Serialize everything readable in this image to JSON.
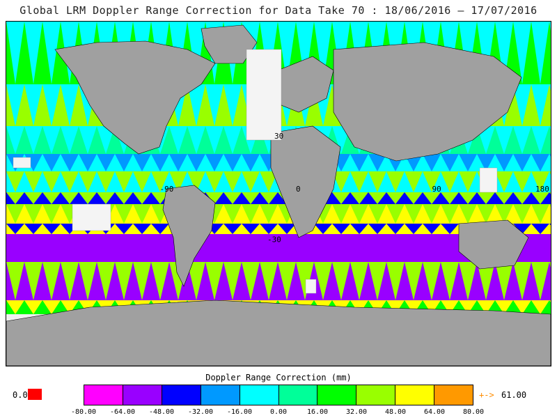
{
  "title": "Global LRM Doppler Range Correction for Data Take 70 : 18/06/2016 — 17/07/2016",
  "map": {
    "lon_labels": [
      "-90",
      "0",
      "90",
      "180"
    ],
    "lat_labels": [
      "30",
      "-30"
    ],
    "lon_ticks": [
      -90,
      0,
      90,
      180
    ],
    "lat_ticks": [
      30,
      -30
    ],
    "pass_colors": [
      "#ff00ff",
      "#9900ff",
      "#0000ff",
      "#0099ff",
      "#00ffff",
      "#00ff99",
      "#00ff00",
      "#99ff00",
      "#ffff00",
      "#ff9900"
    ]
  },
  "colorbar": {
    "title": "Doppler Range Correction (mm)",
    "ticks": [
      "-80.00",
      "-64.00",
      "-48.00",
      "-32.00",
      "-16.00",
      "0.00",
      "16.00",
      "32.00",
      "48.00",
      "64.00",
      "80.00"
    ],
    "colors": [
      "#ff00ff",
      "#9900ff",
      "#0000ff",
      "#0099ff",
      "#00ffff",
      "#00ff99",
      "#00ff00",
      "#99ff00",
      "#ffff00",
      "#ff9900"
    ],
    "undef_label": "0.0",
    "undef_color": "#ff0000",
    "overflow_arrow": "+->",
    "overflow_value": "61.00"
  }
}
